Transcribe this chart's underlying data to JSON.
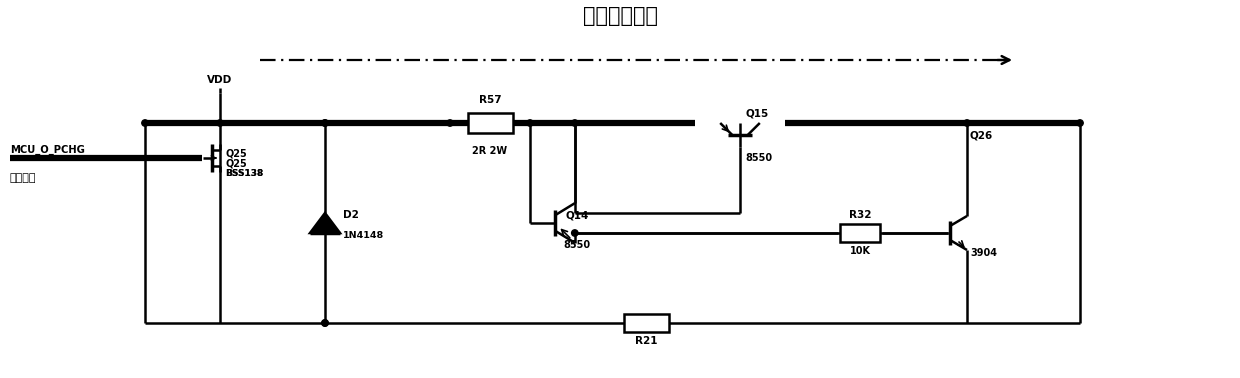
{
  "title": "滑流充电电流",
  "background_color": "#ffffff",
  "line_color": "#000000",
  "figsize": [
    12.4,
    3.78
  ],
  "dpi": 100,
  "labels": {
    "mcu": "MCU_O_PCHG",
    "ctrl": "滑流控制",
    "vdd": "VDD",
    "d2": "D2",
    "d2_part": "1N4148",
    "r57": "R57",
    "r57_val": "2R 2W",
    "q14": "Q14",
    "q14_part": "8550",
    "q15": "Q15",
    "q15_part": "8550",
    "r32": "R32",
    "r32_val": "10K",
    "q26": "Q26",
    "q26_part": "3904",
    "r21": "R21"
  }
}
